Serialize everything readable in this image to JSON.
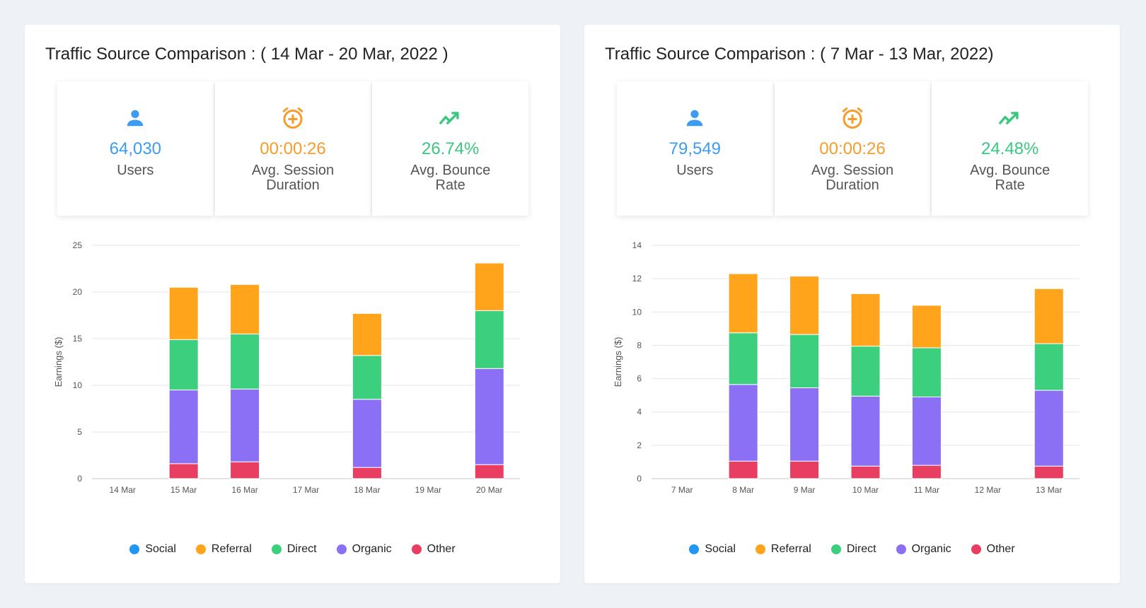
{
  "colors": {
    "Social": "#2196f3",
    "Referral": "#ffa41b",
    "Direct": "#3ccf7e",
    "Organic": "#8b6ff5",
    "Other": "#e83e62",
    "users": "#3d9cf0",
    "duration": "#f59d2a",
    "bounce": "#3cc780"
  },
  "panels": [
    {
      "title": "Traffic Source Comparison : ( 14 Mar - 20 Mar, 2022 )",
      "stats": [
        {
          "icon": "user-icon",
          "value": "64,030",
          "label": "Users",
          "color": "users"
        },
        {
          "icon": "alarm-clock-icon",
          "value": "00:00:26",
          "label": "Avg. Session Duration",
          "color": "duration"
        },
        {
          "icon": "trending-up-icon",
          "value": "26.74%",
          "label": "Avg. Bounce Rate",
          "color": "bounce"
        }
      ]
    },
    {
      "title": "Traffic Source Comparison : ( 7 Mar - 13 Mar, 2022)",
      "stats": [
        {
          "icon": "user-icon",
          "value": "79,549",
          "label": "Users",
          "color": "users"
        },
        {
          "icon": "alarm-clock-icon",
          "value": "00:00:26",
          "label": "Avg. Session Duration",
          "color": "duration"
        },
        {
          "icon": "trending-up-icon",
          "value": "24.48%",
          "label": "Avg. Bounce Rate",
          "color": "bounce"
        }
      ]
    }
  ],
  "chart_data": [
    {
      "type": "bar",
      "stacked": true,
      "categories": [
        "14 Mar",
        "15 Mar",
        "16 Mar",
        "17 Mar",
        "18 Mar",
        "19 Mar",
        "20 Mar"
      ],
      "ylabel": "Earnings ($)",
      "ylim": [
        0,
        25
      ],
      "yticks": [
        0,
        5,
        10,
        15,
        20,
        25
      ],
      "grid": true,
      "legend": "bottom-center",
      "series": [
        {
          "name": "Social",
          "values": [
            0,
            0,
            0,
            0,
            0,
            0,
            0
          ]
        },
        {
          "name": "Other",
          "values": [
            0,
            1.6,
            1.8,
            0,
            1.2,
            0,
            1.5
          ]
        },
        {
          "name": "Organic",
          "values": [
            0,
            7.9,
            7.8,
            0,
            7.3,
            0,
            10.3
          ]
        },
        {
          "name": "Direct",
          "values": [
            0,
            5.4,
            5.9,
            0,
            4.7,
            0,
            6.2
          ]
        },
        {
          "name": "Referral",
          "values": [
            0,
            5.6,
            5.3,
            0,
            4.5,
            0,
            5.1
          ]
        }
      ]
    },
    {
      "type": "bar",
      "stacked": true,
      "categories": [
        "7 Mar",
        "8 Mar",
        "9 Mar",
        "10 Mar",
        "11 Mar",
        "12 Mar",
        "13 Mar"
      ],
      "ylabel": "Earnings ($)",
      "ylim": [
        0,
        14
      ],
      "yticks": [
        0,
        2,
        4,
        6,
        8,
        10,
        12,
        14
      ],
      "grid": true,
      "legend": "bottom-center",
      "series": [
        {
          "name": "Social",
          "values": [
            0,
            0,
            0,
            0,
            0,
            0,
            0
          ]
        },
        {
          "name": "Other",
          "values": [
            0,
            1.05,
            1.05,
            0.75,
            0.8,
            0,
            0.75
          ]
        },
        {
          "name": "Organic",
          "values": [
            0,
            4.6,
            4.4,
            4.2,
            4.1,
            0,
            4.55
          ]
        },
        {
          "name": "Direct",
          "values": [
            0,
            3.1,
            3.2,
            3.0,
            2.95,
            0,
            2.8
          ]
        },
        {
          "name": "Referral",
          "values": [
            0,
            3.55,
            3.5,
            3.15,
            2.55,
            0,
            3.3
          ]
        }
      ]
    }
  ],
  "legend_order": [
    "Social",
    "Referral",
    "Direct",
    "Organic",
    "Other"
  ]
}
